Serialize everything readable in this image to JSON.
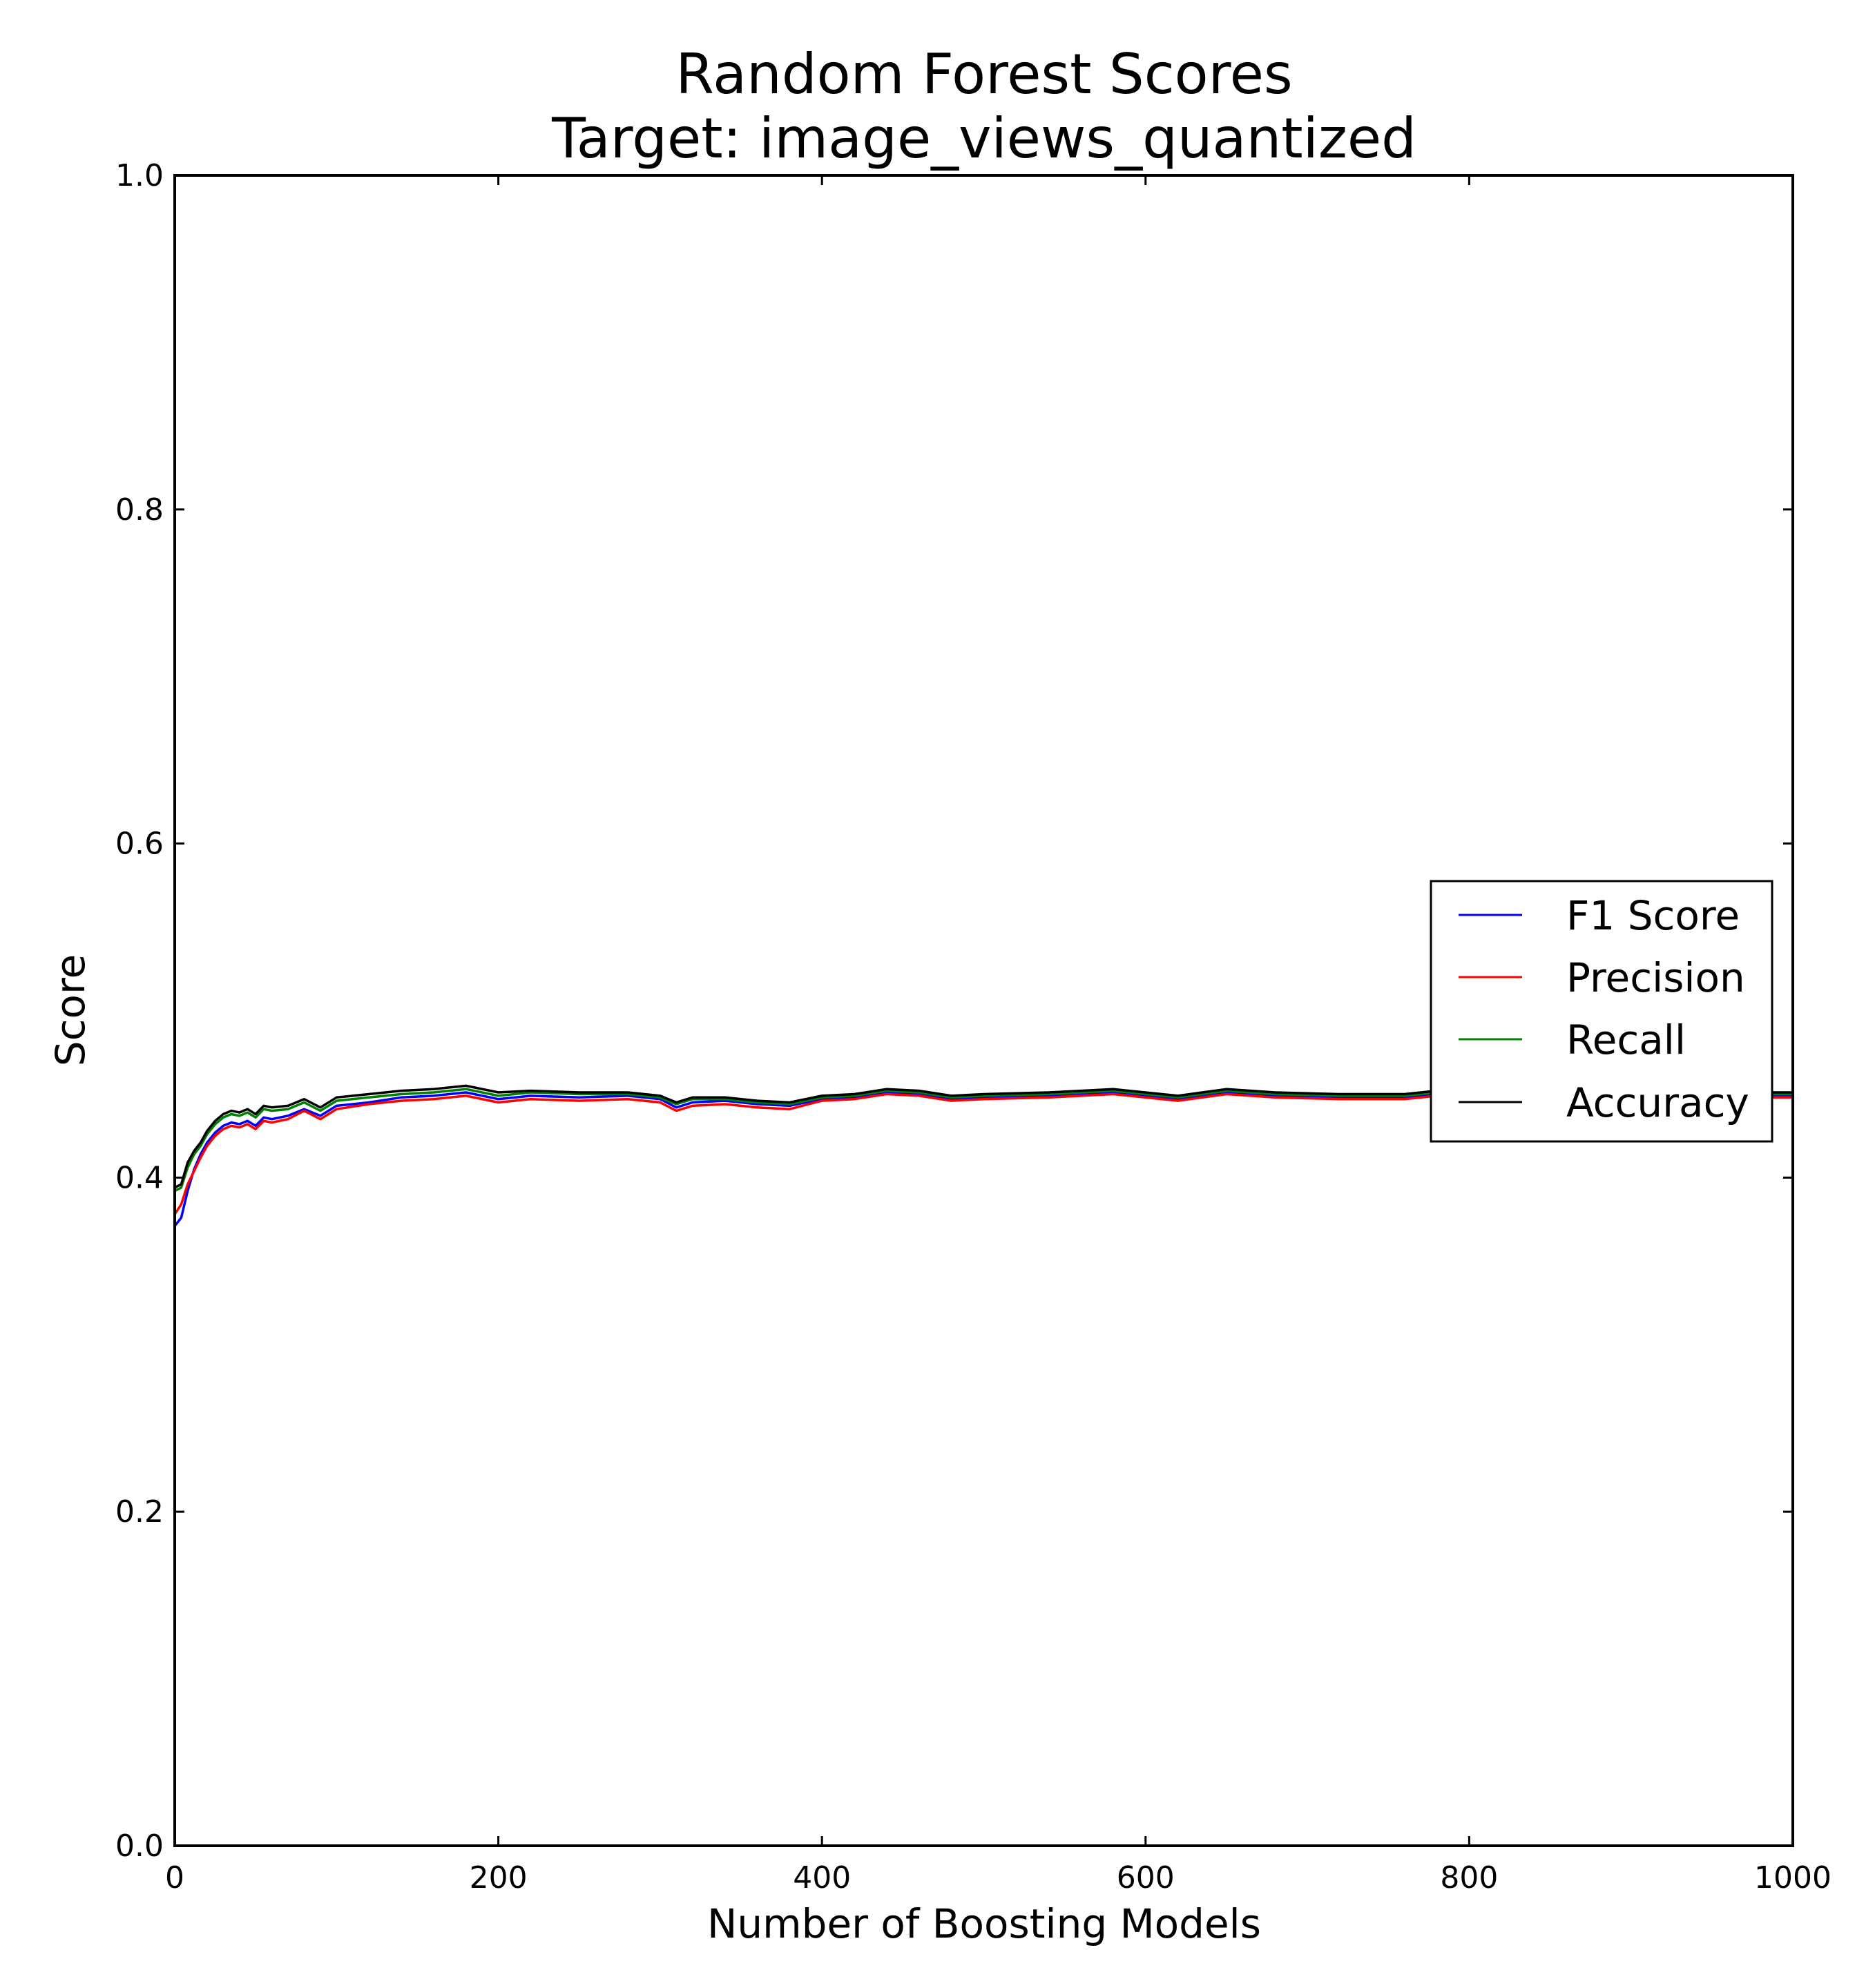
{
  "chart_data": {
    "type": "line",
    "title": "Random Forest Scores",
    "subtitle": "Target: image_views_quantized",
    "xlabel": "Number of Boosting Models",
    "ylabel": "Score",
    "xlim": [
      0,
      1000
    ],
    "ylim": [
      0.0,
      1.0
    ],
    "xticks": [
      0,
      200,
      400,
      600,
      800,
      1000
    ],
    "xtick_labels": [
      "0",
      "200",
      "400",
      "600",
      "800",
      "1000"
    ],
    "yticks": [
      0.0,
      0.2,
      0.4,
      0.6,
      0.8,
      1.0
    ],
    "ytick_labels": [
      "0.0",
      "0.2",
      "0.4",
      "0.6",
      "0.8",
      "1.0"
    ],
    "grid": false,
    "legend_position": "center-right",
    "series": [
      {
        "name": "F1 Score",
        "color": "#0000ff",
        "x": [
          0,
          4,
          8,
          12,
          16,
          20,
          25,
          30,
          35,
          40,
          45,
          50,
          55,
          60,
          70,
          80,
          90,
          100,
          120,
          140,
          160,
          180,
          200,
          220,
          250,
          280,
          300,
          310,
          320,
          340,
          360,
          380,
          400,
          420,
          440,
          460,
          480,
          500,
          540,
          580,
          620,
          650,
          680,
          720,
          760,
          780,
          800,
          840,
          880,
          920,
          960,
          1000
        ],
        "y": [
          0.371,
          0.376,
          0.392,
          0.405,
          0.414,
          0.421,
          0.427,
          0.431,
          0.433,
          0.432,
          0.434,
          0.431,
          0.436,
          0.435,
          0.437,
          0.441,
          0.437,
          0.443,
          0.445,
          0.448,
          0.449,
          0.451,
          0.447,
          0.449,
          0.448,
          0.449,
          0.447,
          0.442,
          0.445,
          0.446,
          0.444,
          0.443,
          0.447,
          0.448,
          0.451,
          0.45,
          0.447,
          0.448,
          0.449,
          0.451,
          0.447,
          0.451,
          0.449,
          0.448,
          0.448,
          0.45,
          0.449,
          0.45,
          0.449,
          0.45,
          0.449,
          0.449
        ]
      },
      {
        "name": "Precision",
        "color": "#ff0000",
        "x": [
          0,
          4,
          8,
          12,
          16,
          20,
          25,
          30,
          35,
          40,
          45,
          50,
          55,
          60,
          70,
          80,
          90,
          100,
          120,
          140,
          160,
          180,
          200,
          220,
          250,
          280,
          300,
          310,
          320,
          340,
          360,
          380,
          400,
          420,
          440,
          460,
          480,
          500,
          540,
          580,
          620,
          650,
          680,
          720,
          760,
          780,
          800,
          840,
          880,
          920,
          960,
          1000
        ],
        "y": [
          0.378,
          0.384,
          0.396,
          0.404,
          0.412,
          0.419,
          0.425,
          0.429,
          0.431,
          0.43,
          0.432,
          0.429,
          0.434,
          0.433,
          0.435,
          0.44,
          0.435,
          0.441,
          0.444,
          0.446,
          0.447,
          0.449,
          0.445,
          0.447,
          0.446,
          0.447,
          0.445,
          0.44,
          0.443,
          0.444,
          0.442,
          0.441,
          0.446,
          0.447,
          0.45,
          0.449,
          0.446,
          0.447,
          0.448,
          0.45,
          0.446,
          0.45,
          0.448,
          0.447,
          0.447,
          0.449,
          0.448,
          0.449,
          0.448,
          0.449,
          0.448,
          0.448
        ]
      },
      {
        "name": "Recall",
        "color": "#008000",
        "x": [
          0,
          4,
          8,
          12,
          16,
          20,
          25,
          30,
          35,
          40,
          45,
          50,
          55,
          60,
          70,
          80,
          90,
          100,
          120,
          140,
          160,
          180,
          200,
          220,
          250,
          280,
          300,
          310,
          320,
          340,
          360,
          380,
          400,
          420,
          440,
          460,
          480,
          500,
          540,
          580,
          620,
          650,
          680,
          720,
          760,
          780,
          800,
          840,
          880,
          920,
          960,
          1000
        ],
        "y": [
          0.392,
          0.394,
          0.406,
          0.414,
          0.419,
          0.426,
          0.432,
          0.436,
          0.438,
          0.437,
          0.439,
          0.436,
          0.441,
          0.44,
          0.441,
          0.445,
          0.44,
          0.446,
          0.448,
          0.45,
          0.451,
          0.453,
          0.449,
          0.451,
          0.45,
          0.45,
          0.448,
          0.444,
          0.447,
          0.447,
          0.445,
          0.444,
          0.448,
          0.449,
          0.452,
          0.451,
          0.448,
          0.449,
          0.45,
          0.452,
          0.448,
          0.452,
          0.45,
          0.449,
          0.449,
          0.451,
          0.45,
          0.451,
          0.45,
          0.451,
          0.45,
          0.45
        ]
      },
      {
        "name": "Accuracy",
        "color": "#000000",
        "x": [
          0,
          4,
          8,
          12,
          16,
          20,
          25,
          30,
          35,
          40,
          45,
          50,
          55,
          60,
          70,
          80,
          90,
          100,
          120,
          140,
          160,
          180,
          200,
          220,
          250,
          280,
          300,
          310,
          320,
          340,
          360,
          380,
          400,
          420,
          440,
          460,
          480,
          500,
          540,
          580,
          620,
          650,
          680,
          720,
          760,
          780,
          800,
          840,
          880,
          920,
          960,
          1000
        ],
        "y": [
          0.394,
          0.396,
          0.409,
          0.416,
          0.421,
          0.428,
          0.434,
          0.438,
          0.44,
          0.439,
          0.441,
          0.438,
          0.443,
          0.442,
          0.443,
          0.447,
          0.442,
          0.448,
          0.45,
          0.452,
          0.453,
          0.455,
          0.451,
          0.452,
          0.451,
          0.451,
          0.449,
          0.445,
          0.448,
          0.448,
          0.446,
          0.445,
          0.449,
          0.45,
          0.453,
          0.452,
          0.449,
          0.45,
          0.451,
          0.453,
          0.449,
          0.453,
          0.451,
          0.45,
          0.45,
          0.452,
          0.451,
          0.452,
          0.451,
          0.452,
          0.451,
          0.451
        ]
      }
    ]
  }
}
